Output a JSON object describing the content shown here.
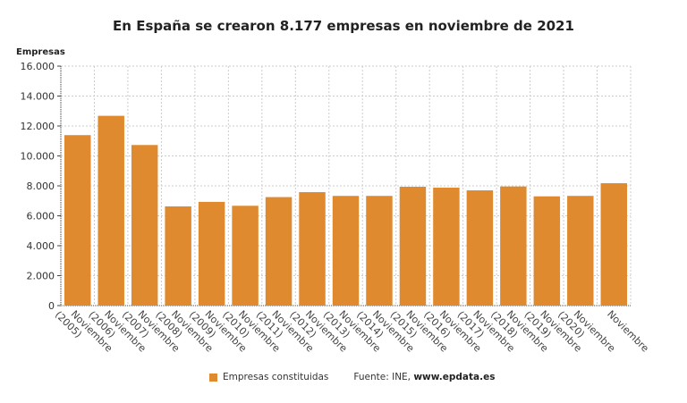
{
  "chart_data": {
    "type": "bar",
    "title": "En España se crearon 8.177 empresas en noviembre de 2021",
    "ylabel": "Empresas",
    "xlabel": "",
    "categories": [
      "Noviembre (2005)",
      "Noviembre (2006)",
      "Noviembre (2007)",
      "Noviembre (2008)",
      "Noviembre (2009)",
      "Noviembre (2010)",
      "Noviembre (2011)",
      "Noviembre (2012)",
      "Noviembre (2013)",
      "Noviembre (2014)",
      "Noviembre (2015)",
      "Noviembre (2016)",
      "Noviembre (2017)",
      "Noviembre (2018)",
      "Noviembre (2019)",
      "Noviembre (2020)",
      "Noviembre"
    ],
    "series": [
      {
        "name": "Empresas constituidas",
        "color": "#e08a2f",
        "values": [
          11390,
          12680,
          10730,
          6630,
          6930,
          6670,
          7250,
          7580,
          7330,
          7330,
          7940,
          7880,
          7700,
          7960,
          7300,
          7330,
          8177
        ]
      }
    ],
    "ylim": [
      0,
      16000
    ],
    "yticks": [
      0,
      2000,
      4000,
      6000,
      8000,
      10000,
      12000,
      14000,
      16000
    ],
    "ytick_labels": [
      "0",
      "2.000",
      "4.000",
      "6.000",
      "8.000",
      "10.000",
      "12.000",
      "14.000",
      "16.000"
    ],
    "grid": true,
    "legend": "bottom"
  },
  "source": {
    "prefix": "Fuente: INE, ",
    "site": "www.epdata.es"
  }
}
